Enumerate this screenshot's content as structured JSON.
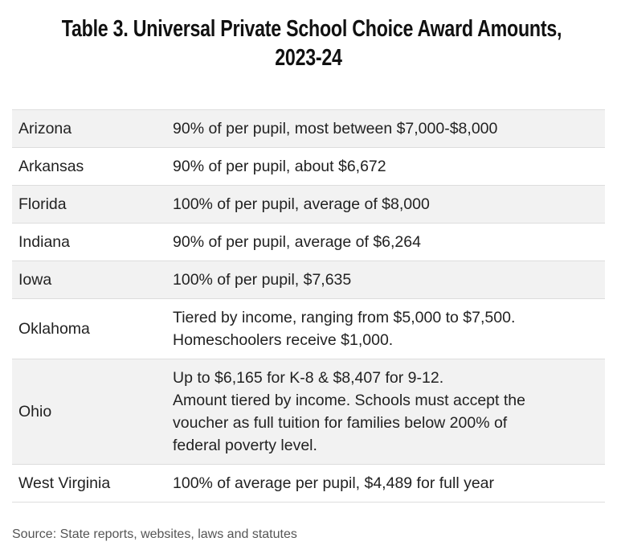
{
  "header": {
    "title": [
      "Table 3. Universal Private School Choice Award Amounts,",
      "2023-24"
    ]
  },
  "table": {
    "rows": [
      {
        "state": "Arizona",
        "award": [
          "90% of per pupil, most between $7,000-$8,000"
        ]
      },
      {
        "state": "Arkansas",
        "award": [
          "90% of per pupil, about $6,672"
        ]
      },
      {
        "state": "Florida",
        "award": [
          "100% of per pupil, average of $8,000"
        ]
      },
      {
        "state": "Indiana",
        "award": [
          "90% of per pupil, average of $6,264"
        ]
      },
      {
        "state": "Iowa",
        "award": [
          "100% of per pupil, $7,635"
        ]
      },
      {
        "state": "Oklahoma",
        "award": [
          "Tiered by income, ranging from $5,000 to $7,500.",
          "Homeschoolers receive $1,000."
        ]
      },
      {
        "state": "Ohio",
        "award": [
          "Up to $6,165 for K-8 & $8,407 for 9-12.",
          "Amount tiered by income. Schools must accept the",
          "voucher as full tuition for families below 200% of",
          "federal poverty level."
        ]
      },
      {
        "state": "West Virginia",
        "award": [
          "100% of average per pupil, $4,489 for full year"
        ]
      }
    ]
  },
  "footer": {
    "source": "Source: State reports, websites, laws and statutes"
  }
}
